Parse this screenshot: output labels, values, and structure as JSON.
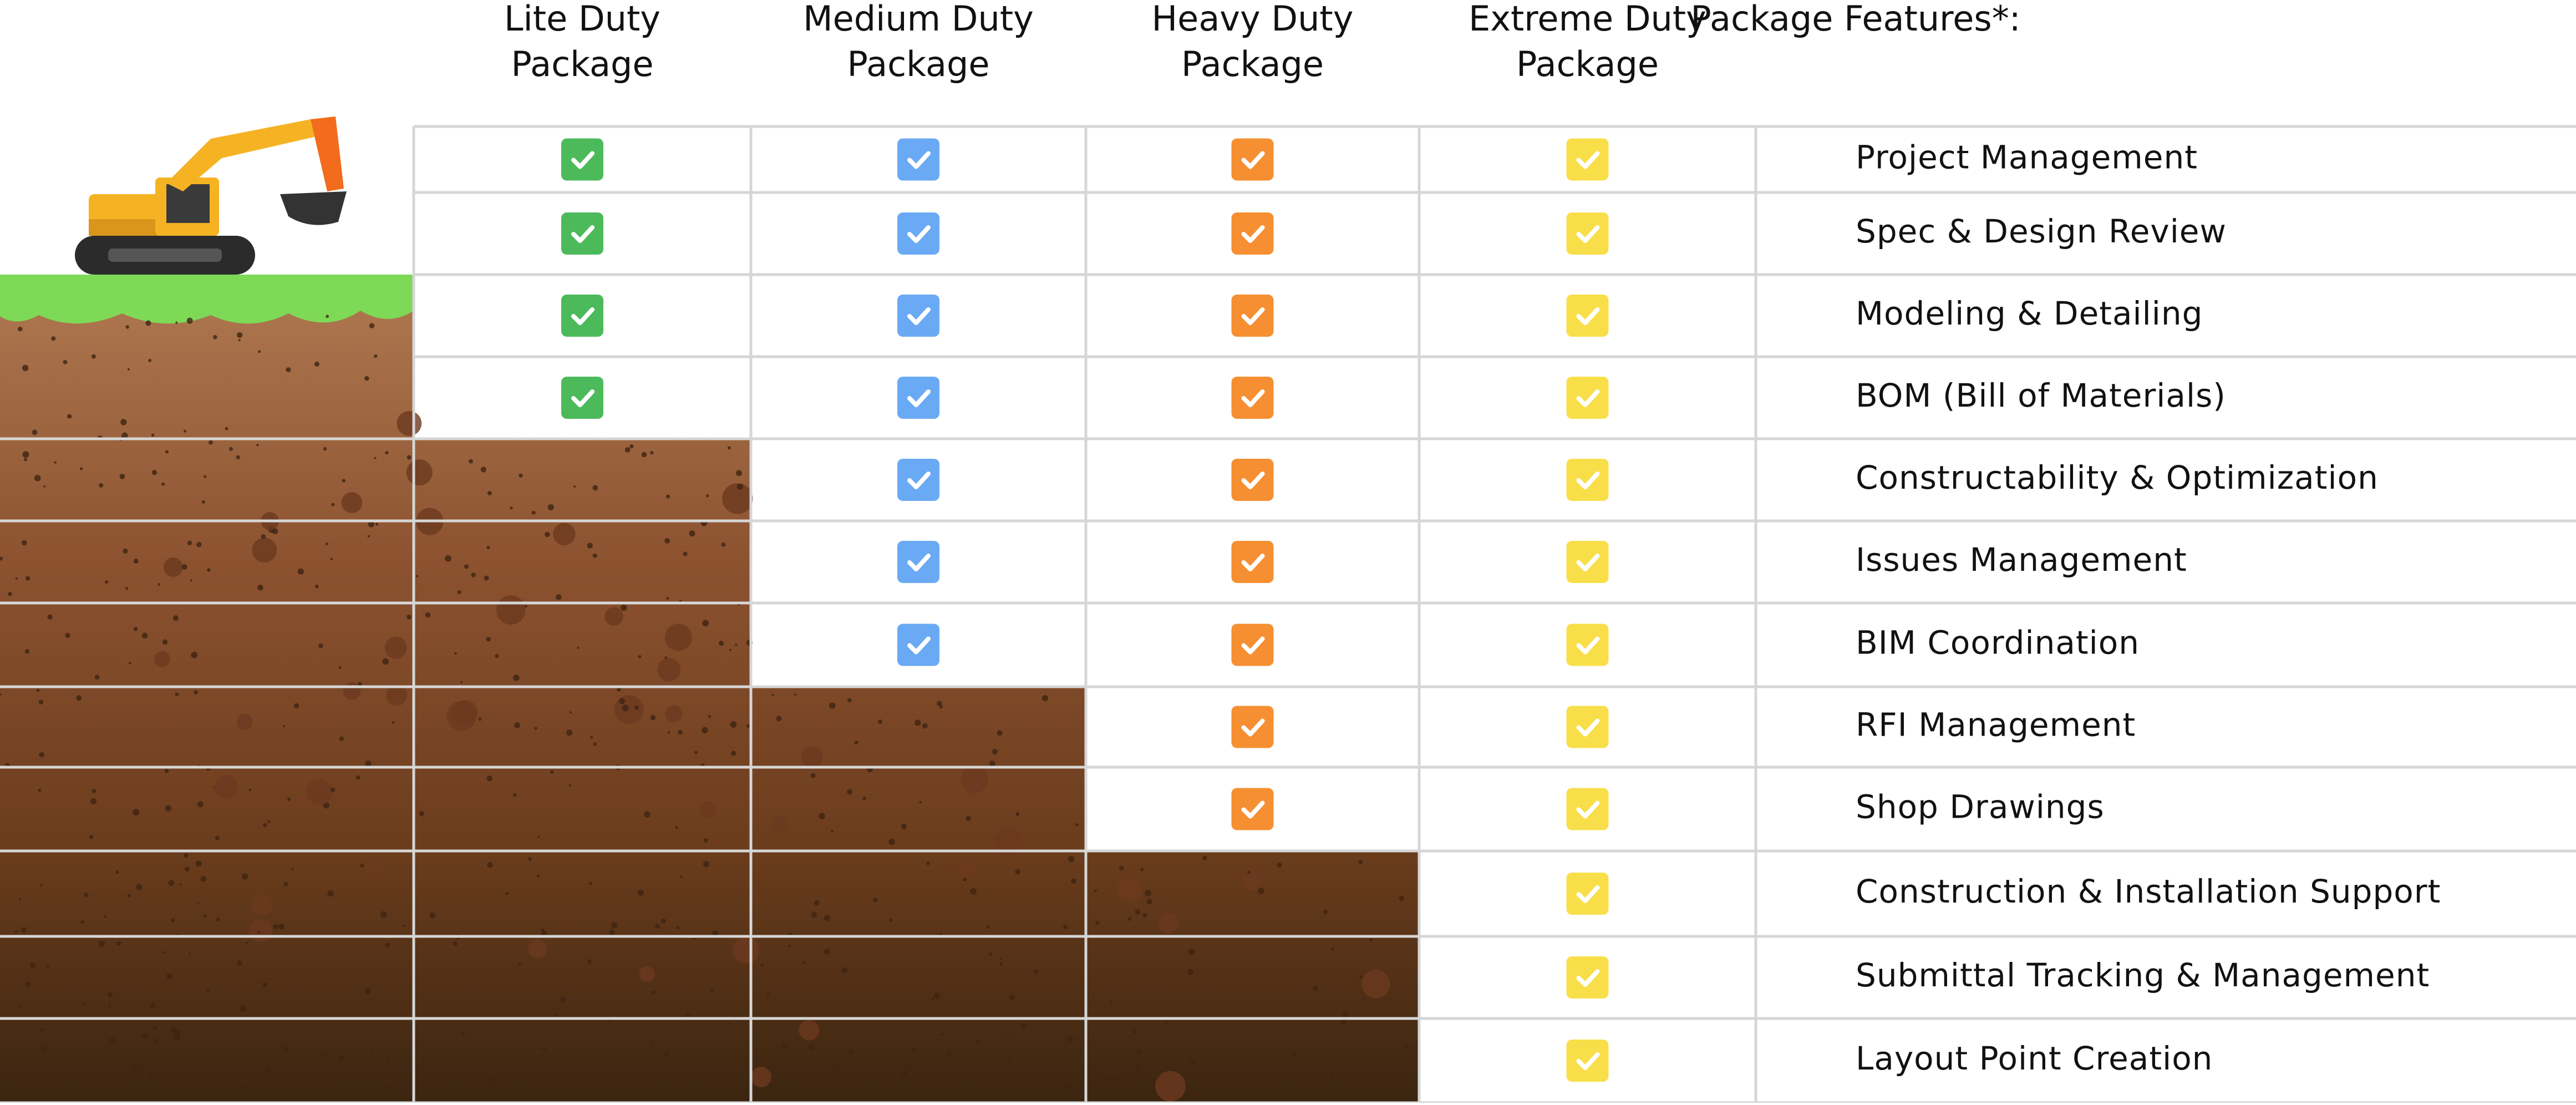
{
  "header": {
    "packages": [
      {
        "title": [
          "Lite Duty",
          "Package"
        ],
        "color": "#4cba5b"
      },
      {
        "title": [
          "Medium Duty",
          "Package"
        ],
        "color": "#6aaaf4"
      },
      {
        "title": [
          "Heavy Duty",
          "Package"
        ],
        "color": "#f68f32"
      },
      {
        "title": [
          "Extreme Duty",
          "Package"
        ],
        "color": "#f8df4a"
      }
    ],
    "features_title": "Package Features*:"
  },
  "rows": [
    {
      "feature": "Project Management",
      "included": [
        true,
        true,
        true,
        true
      ]
    },
    {
      "feature": "Spec & Design Review",
      "included": [
        true,
        true,
        true,
        true
      ]
    },
    {
      "feature": "Modeling & Detailing",
      "included": [
        true,
        true,
        true,
        true
      ]
    },
    {
      "feature": "BOM (Bill of Materials)",
      "included": [
        true,
        true,
        true,
        true
      ]
    },
    {
      "feature": "Constructability & Optimization",
      "included": [
        false,
        true,
        true,
        true
      ]
    },
    {
      "feature": "Issues Management",
      "included": [
        false,
        true,
        true,
        true
      ]
    },
    {
      "feature": "BIM Coordination",
      "included": [
        false,
        true,
        true,
        true
      ]
    },
    {
      "feature": "RFI Management",
      "included": [
        false,
        false,
        true,
        true
      ]
    },
    {
      "feature": "Shop Drawings",
      "included": [
        false,
        false,
        true,
        true
      ]
    },
    {
      "feature": "Construction & Installation Support",
      "included": [
        false,
        false,
        false,
        true
      ]
    },
    {
      "feature": "Submittal Tracking & Management",
      "included": [
        false,
        false,
        false,
        true
      ]
    },
    {
      "feature": "Layout Point Creation",
      "included": [
        false,
        false,
        false,
        true
      ]
    }
  ]
}
